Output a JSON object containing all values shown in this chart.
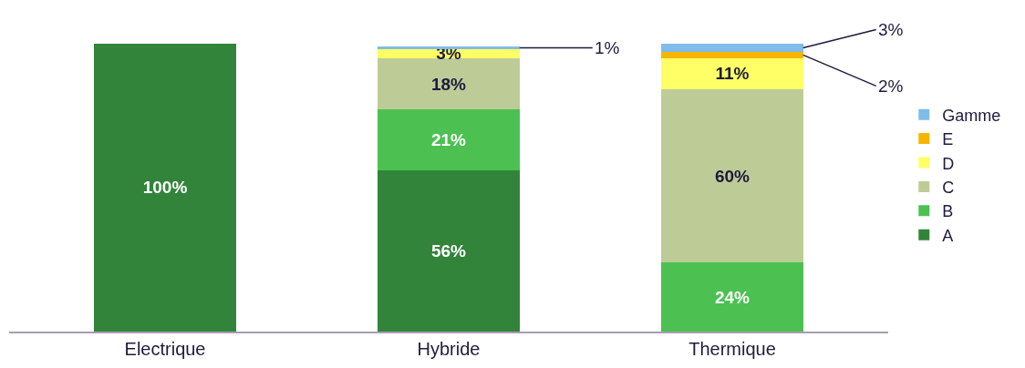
{
  "chart_data": {
    "type": "bar",
    "stacked": true,
    "categories": [
      "Electrique",
      "Hybride",
      "Thermique"
    ],
    "legend": "right",
    "series": [
      {
        "name": "A",
        "color": "#31843a",
        "values": [
          100,
          56,
          null
        ],
        "value_labels": [
          "100%",
          "56%",
          null
        ]
      },
      {
        "name": "B",
        "color": "#4cc152",
        "values": [
          null,
          21,
          24
        ],
        "value_labels": [
          null,
          "21%",
          "24%"
        ]
      },
      {
        "name": "C",
        "color": "#bdcc97",
        "values": [
          null,
          18,
          60
        ],
        "value_labels": [
          null,
          "18%",
          "60%"
        ]
      },
      {
        "name": "D",
        "color": "#ffff66",
        "values": [
          null,
          3,
          11
        ],
        "value_labels": [
          null,
          "3%",
          "11%"
        ]
      },
      {
        "name": "E",
        "color": "#f7b500",
        "values": [
          null,
          null,
          2
        ],
        "value_labels": [
          null,
          null,
          "2%"
        ]
      },
      {
        "name": "Gamme",
        "color": "#7fbde8",
        "values": [
          null,
          1,
          3
        ],
        "value_labels": [
          null,
          "1%",
          "3%"
        ]
      }
    ]
  }
}
